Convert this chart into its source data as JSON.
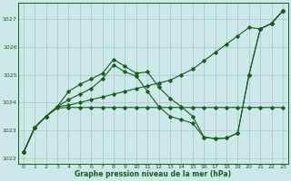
{
  "title": "Graphe pression niveau de la mer (hPa)",
  "bg_color": "#cce8e8",
  "grid_color": "#aacccc",
  "line_color": "#1a5c1a",
  "xlim": [
    -0.5,
    23.5
  ],
  "ylim": [
    1021.8,
    1027.6
  ],
  "yticks": [
    1022,
    1023,
    1024,
    1025,
    1026,
    1027
  ],
  "xticks": [
    0,
    1,
    2,
    3,
    4,
    5,
    6,
    7,
    8,
    9,
    10,
    11,
    12,
    13,
    14,
    15,
    16,
    17,
    18,
    19,
    20,
    21,
    22,
    23
  ],
  "lines": [
    {
      "x": [
        0,
        1,
        2,
        3,
        4,
        5,
        6,
        7,
        8,
        9,
        10,
        11,
        12,
        13,
        14,
        15,
        16,
        17,
        18,
        19,
        20,
        21,
        22,
        23
      ],
      "y": [
        1022.2,
        1023.1,
        1023.5,
        1023.85,
        1023.9,
        1024.0,
        1024.1,
        1024.2,
        1024.3,
        1024.4,
        1024.5,
        1024.6,
        1024.7,
        1024.8,
        1025.0,
        1025.2,
        1025.5,
        1025.8,
        1026.1,
        1026.4,
        1026.7,
        1026.65,
        1026.85,
        1027.3
      ]
    },
    {
      "x": [
        0,
        1,
        2,
        3,
        4,
        5,
        6,
        7,
        8,
        9,
        10,
        11,
        12,
        13,
        14,
        15,
        16,
        17,
        18,
        19,
        20,
        21,
        22,
        23
      ],
      "y": [
        1022.2,
        1023.1,
        1023.5,
        1023.8,
        1023.82,
        1023.82,
        1023.82,
        1023.82,
        1023.82,
        1023.82,
        1023.82,
        1023.82,
        1023.82,
        1023.82,
        1023.82,
        1023.82,
        1023.82,
        1023.82,
        1023.82,
        1023.82,
        1023.82,
        1023.82,
        1023.82,
        1023.82
      ]
    },
    {
      "x": [
        0,
        1,
        2,
        3,
        4,
        5,
        6,
        7,
        8,
        9,
        10,
        11,
        12,
        13,
        14,
        15,
        16,
        17,
        18,
        19,
        20,
        21,
        22,
        23
      ],
      "y": [
        1022.2,
        1023.1,
        1023.5,
        1023.85,
        1024.4,
        1024.65,
        1024.85,
        1025.05,
        1025.55,
        1025.3,
        1025.05,
        1025.1,
        1024.55,
        1024.15,
        1023.85,
        1023.5,
        1022.75,
        1022.7,
        1022.72,
        1022.9,
        1025.0,
        1026.65,
        1026.85,
        1027.3
      ]
    },
    {
      "x": [
        0,
        1,
        2,
        3,
        4,
        5,
        6,
        7,
        8,
        9,
        10,
        11,
        12,
        13,
        14,
        15,
        16,
        17,
        18,
        19,
        20,
        21,
        22,
        23
      ],
      "y": [
        1022.2,
        1023.1,
        1023.5,
        1023.85,
        1024.1,
        1024.3,
        1024.5,
        1024.85,
        1025.35,
        1025.1,
        1024.95,
        1024.4,
        1023.85,
        1023.5,
        1023.38,
        1023.25,
        1022.75,
        1022.7,
        1022.72,
        1022.9,
        1025.0,
        1026.65,
        1026.85,
        1027.3
      ]
    }
  ]
}
